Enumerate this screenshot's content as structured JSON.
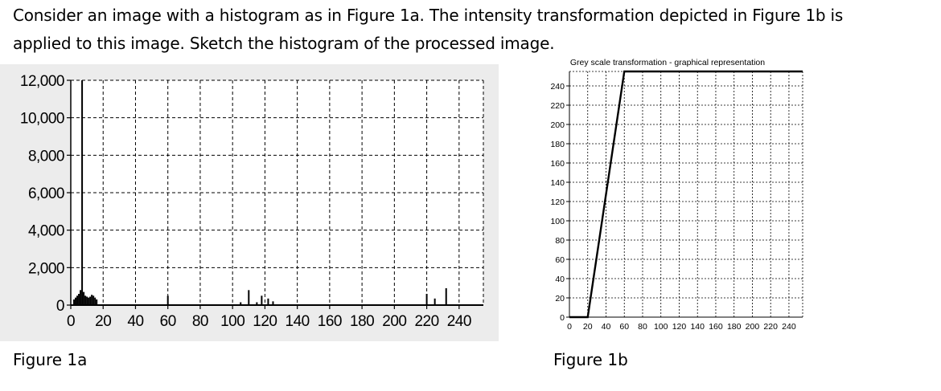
{
  "question": {
    "line1": "Consider an image with a histogram as in Figure 1a. The intensity transformation depicted in Figure 1b is",
    "line2": "applied to this image. Sketch the histogram of the processed image."
  },
  "captions": {
    "fig_a": "Figure 1a",
    "fig_b": "Figure 1b"
  },
  "colors": {
    "panel_bg": "#ececec",
    "plot_bg": "#ffffff",
    "grid": "#000000",
    "data": "#000000"
  },
  "chart_data": [
    {
      "type": "bar",
      "title": "",
      "xlabel": "",
      "ylabel": "",
      "xlim": [
        0,
        255
      ],
      "ylim": [
        0,
        12000
      ],
      "grid": true,
      "x_ticks": [
        0,
        20,
        40,
        60,
        80,
        100,
        120,
        140,
        160,
        180,
        200,
        220,
        240
      ],
      "x_tick_labels": [
        "0",
        "20",
        "40",
        "60",
        "80",
        "100",
        "120",
        "140",
        "160",
        "180",
        "200",
        "220",
        "240"
      ],
      "y_ticks": [
        0,
        2000,
        4000,
        6000,
        8000,
        10000,
        12000
      ],
      "y_tick_labels": [
        "0",
        "2,000",
        "4,000",
        "6,000",
        "8,000",
        "10,000",
        "12,000"
      ],
      "x": [
        2,
        3,
        4,
        5,
        6,
        7,
        8,
        9,
        10,
        11,
        12,
        13,
        14,
        15,
        16,
        60,
        105,
        110,
        115,
        118,
        122,
        125,
        220,
        225,
        232
      ],
      "values": [
        300,
        400,
        500,
        600,
        800,
        12000,
        700,
        500,
        450,
        400,
        450,
        550,
        500,
        400,
        300,
        500,
        150,
        800,
        150,
        500,
        350,
        200,
        600,
        350,
        900
      ]
    },
    {
      "type": "line",
      "title": "Grey scale transformation - graphical representation",
      "xlabel": "",
      "ylabel": "",
      "xlim": [
        0,
        255
      ],
      "ylim": [
        0,
        255
      ],
      "grid": true,
      "x_ticks": [
        0,
        20,
        40,
        60,
        80,
        100,
        120,
        140,
        160,
        180,
        200,
        220,
        240
      ],
      "x_tick_labels": [
        "0",
        "20",
        "40",
        "60",
        "80",
        "100",
        "120",
        "140",
        "160",
        "180",
        "200",
        "220",
        "240"
      ],
      "y_ticks": [
        0,
        20,
        40,
        60,
        80,
        100,
        120,
        140,
        160,
        180,
        200,
        220,
        240
      ],
      "y_tick_labels": [
        "0",
        "20",
        "40",
        "60",
        "80",
        "100",
        "120",
        "140",
        "160",
        "180",
        "200",
        "220",
        "240"
      ],
      "x": [
        0,
        20,
        60,
        255
      ],
      "y": [
        0,
        0,
        255,
        255
      ]
    }
  ]
}
